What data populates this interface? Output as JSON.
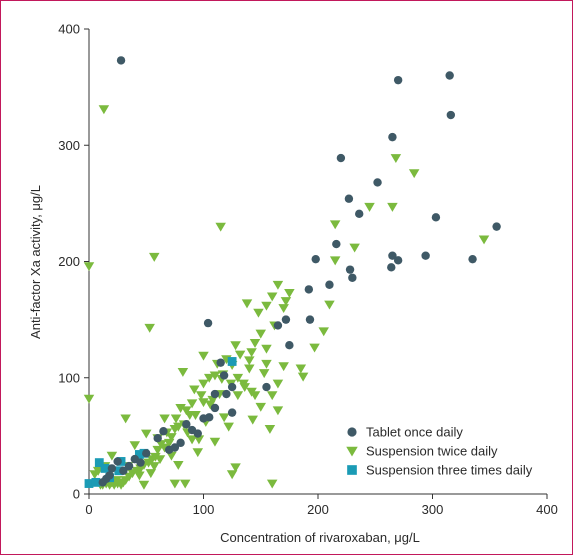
{
  "chart_data": {
    "type": "scatter",
    "xlabel": "Concentration of rivaroxaban, μg/L",
    "ylabel": "Anti-factor Xa activity, μg/L",
    "xlim": [
      0,
      400
    ],
    "ylim": [
      0,
      400
    ],
    "x_ticks": [
      "0",
      "100",
      "200",
      "300",
      "400"
    ],
    "y_ticks": [
      "0",
      "100",
      "200",
      "300",
      "400"
    ],
    "grid": false,
    "legend_position": "bottom-right",
    "frame_color": "#c2185b",
    "series": [
      {
        "name": "Tablet once daily",
        "marker": "circle",
        "color": "#3f5966",
        "points": [
          [
            28,
            373
          ],
          [
            270,
            356
          ],
          [
            315,
            360
          ],
          [
            316,
            326
          ],
          [
            265,
            307
          ],
          [
            220,
            289
          ],
          [
            252,
            268
          ],
          [
            227,
            254
          ],
          [
            236,
            241
          ],
          [
            303,
            238
          ],
          [
            356,
            230
          ],
          [
            216,
            215
          ],
          [
            265,
            205
          ],
          [
            270,
            201
          ],
          [
            294,
            205
          ],
          [
            335,
            202
          ],
          [
            198,
            202
          ],
          [
            210,
            180
          ],
          [
            192,
            176
          ],
          [
            228,
            193
          ],
          [
            264,
            195
          ],
          [
            230,
            186
          ],
          [
            193,
            150
          ],
          [
            104,
            147
          ],
          [
            175,
            128
          ],
          [
            165,
            145
          ],
          [
            115,
            113
          ],
          [
            118,
            102
          ],
          [
            125,
            92
          ],
          [
            155,
            92
          ],
          [
            120,
            86
          ],
          [
            110,
            74
          ],
          [
            105,
            66
          ],
          [
            125,
            70
          ],
          [
            100,
            65
          ],
          [
            85,
            60
          ],
          [
            90,
            55
          ],
          [
            95,
            52
          ],
          [
            80,
            44
          ],
          [
            70,
            38
          ],
          [
            60,
            48
          ],
          [
            50,
            35
          ],
          [
            40,
            30
          ],
          [
            45,
            27
          ],
          [
            35,
            24
          ],
          [
            30,
            20
          ],
          [
            20,
            22
          ],
          [
            25,
            28
          ],
          [
            15,
            13
          ],
          [
            12,
            10
          ],
          [
            18,
            16
          ],
          [
            65,
            54
          ],
          [
            75,
            40
          ],
          [
            110,
            86
          ],
          [
            172,
            150
          ]
        ]
      },
      {
        "name": "Suspension twice daily",
        "marker": "triangle-down",
        "color": "#7bba3e",
        "points": [
          [
            13,
            331
          ],
          [
            0,
            196
          ],
          [
            57,
            204
          ],
          [
            115,
            230
          ],
          [
            53,
            143
          ],
          [
            0,
            82
          ],
          [
            268,
            289
          ],
          [
            284,
            276
          ],
          [
            245,
            247
          ],
          [
            265,
            247
          ],
          [
            345,
            219
          ],
          [
            215,
            232
          ],
          [
            232,
            212
          ],
          [
            215,
            201
          ],
          [
            175,
            173
          ],
          [
            172,
            166
          ],
          [
            165,
            180
          ],
          [
            160,
            170
          ],
          [
            170,
            160
          ],
          [
            155,
            162
          ],
          [
            148,
            156
          ],
          [
            138,
            164
          ],
          [
            162,
            145
          ],
          [
            150,
            138
          ],
          [
            145,
            130
          ],
          [
            142,
            122
          ],
          [
            155,
            125
          ],
          [
            140,
            115
          ],
          [
            132,
            120
          ],
          [
            128,
            128
          ],
          [
            125,
            111
          ],
          [
            120,
            116
          ],
          [
            112,
            112
          ],
          [
            110,
            102
          ],
          [
            117,
            103
          ],
          [
            105,
            100
          ],
          [
            100,
            95
          ],
          [
            98,
            85
          ],
          [
            92,
            90
          ],
          [
            90,
            78
          ],
          [
            85,
            72
          ],
          [
            88,
            68
          ],
          [
            80,
            74
          ],
          [
            83,
            60
          ],
          [
            78,
            58
          ],
          [
            75,
            56
          ],
          [
            72,
            49
          ],
          [
            70,
            44
          ],
          [
            66,
            40
          ],
          [
            63,
            43
          ],
          [
            60,
            38
          ],
          [
            58,
            32
          ],
          [
            55,
            30
          ],
          [
            52,
            27
          ],
          [
            48,
            25
          ],
          [
            45,
            22
          ],
          [
            42,
            20
          ],
          [
            38,
            18
          ],
          [
            35,
            15
          ],
          [
            32,
            12
          ],
          [
            30,
            10
          ],
          [
            28,
            8
          ],
          [
            25,
            9
          ],
          [
            22,
            8
          ],
          [
            20,
            10
          ],
          [
            18,
            8
          ],
          [
            15,
            9
          ],
          [
            12,
            8
          ],
          [
            10,
            8
          ],
          [
            8,
            20
          ],
          [
            5,
            17
          ],
          [
            14,
            24
          ],
          [
            24,
            12
          ],
          [
            34,
            24
          ],
          [
            44,
            16
          ],
          [
            54,
            18
          ],
          [
            62,
            30
          ],
          [
            68,
            53
          ],
          [
            76,
            65
          ],
          [
            86,
            53
          ],
          [
            96,
            47
          ],
          [
            106,
            77
          ],
          [
            114,
            86
          ],
          [
            124,
            95
          ],
          [
            130,
            85
          ],
          [
            136,
            92
          ],
          [
            142,
            88
          ],
          [
            150,
            75
          ],
          [
            160,
            85
          ],
          [
            165,
            95
          ],
          [
            170,
            110
          ],
          [
            185,
            108
          ],
          [
            187,
            101
          ],
          [
            205,
            140
          ],
          [
            210,
            163
          ],
          [
            125,
            17
          ],
          [
            128,
            23
          ],
          [
            160,
            9
          ],
          [
            84,
            9
          ],
          [
            20,
            33
          ],
          [
            40,
            42
          ],
          [
            66,
            65
          ],
          [
            82,
            105
          ],
          [
            100,
            119
          ],
          [
            158,
            56
          ],
          [
            95,
            36
          ],
          [
            78,
            25
          ],
          [
            50,
            52
          ],
          [
            135,
            95
          ],
          [
            102,
            62
          ],
          [
            145,
            85
          ],
          [
            118,
            66
          ],
          [
            90,
            47
          ],
          [
            72,
            33
          ],
          [
            57,
            24
          ],
          [
            110,
            45
          ],
          [
            32,
            65
          ],
          [
            108,
            81
          ],
          [
            143,
            64
          ],
          [
            153,
            104
          ],
          [
            197,
            126
          ],
          [
            93,
            68
          ],
          [
            48,
            8
          ],
          [
            60,
            48
          ],
          [
            122,
            58
          ],
          [
            130,
            100
          ],
          [
            165,
            72
          ],
          [
            75,
            9
          ],
          [
            100,
            79
          ],
          [
            116,
            99
          ],
          [
            140,
            108
          ],
          [
            155,
            112
          ]
        ]
      },
      {
        "name": "Suspension three times daily",
        "marker": "square",
        "color": "#1b9bb5",
        "points": [
          [
            0,
            9
          ],
          [
            9,
            27
          ],
          [
            18,
            14
          ],
          [
            26,
            20
          ],
          [
            28,
            28
          ],
          [
            44,
            34
          ],
          [
            48,
            35
          ],
          [
            125,
            114
          ],
          [
            6,
            10
          ],
          [
            14,
            22
          ]
        ]
      }
    ]
  }
}
